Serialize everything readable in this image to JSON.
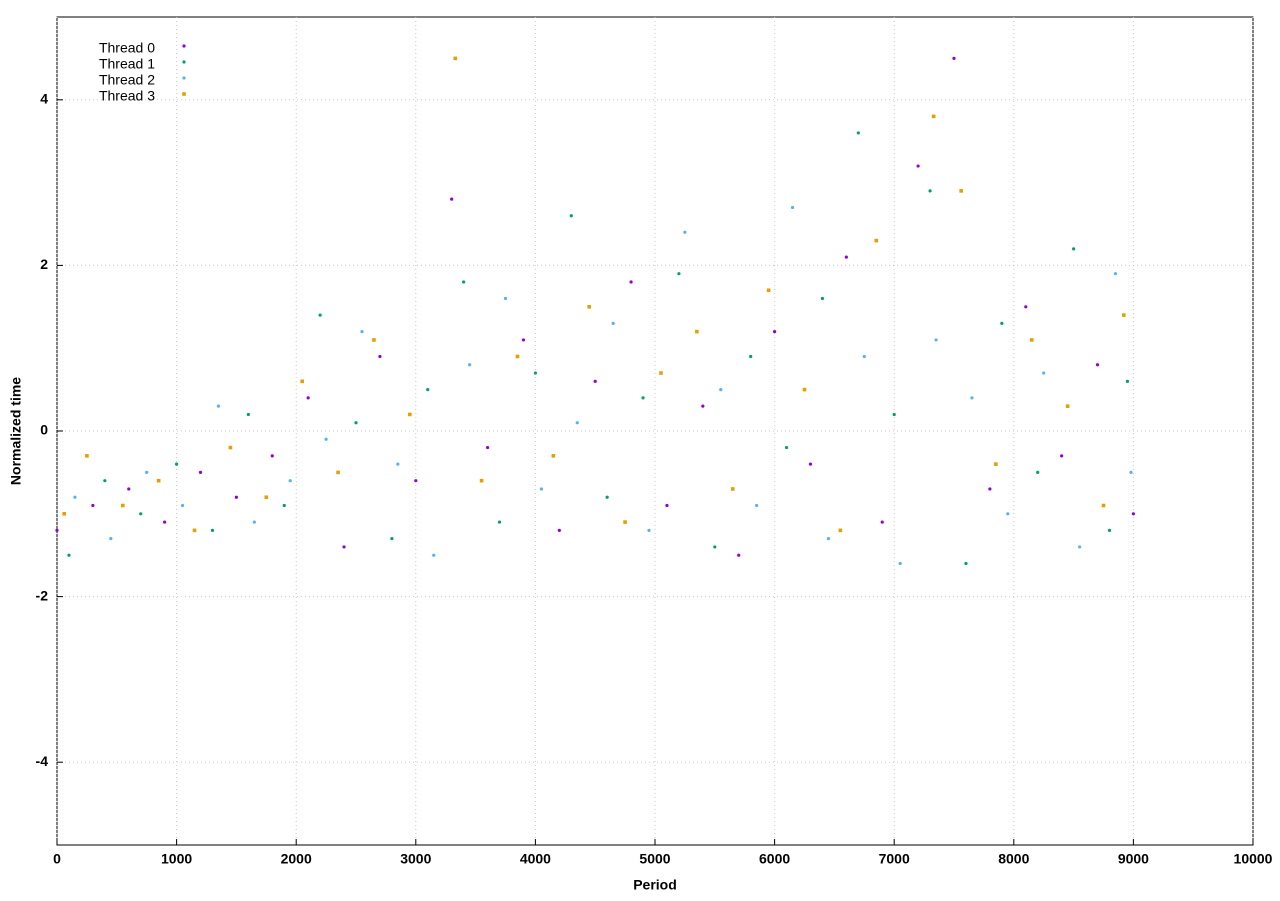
{
  "chart_data": {
    "type": "scatter",
    "xlabel": "Period",
    "ylabel": "Normalized time",
    "xlim": [
      0,
      10000
    ],
    "ylim": [
      -5,
      5
    ],
    "xticks": [
      0,
      1000,
      2000,
      3000,
      4000,
      5000,
      6000,
      7000,
      8000,
      9000,
      10000
    ],
    "yticks": [
      -4,
      -2,
      0,
      2,
      4
    ],
    "grid": true,
    "legend": "upper left",
    "series": [
      {
        "name": "Thread 0",
        "color": "#9400d3",
        "marker": "circle",
        "x": [
          0,
          300,
          600,
          900,
          1200,
          1500,
          1800,
          2100,
          2400,
          2700,
          3000,
          3300,
          3600,
          3900,
          4200,
          4500,
          4800,
          5100,
          5400,
          5700,
          6000,
          6300,
          6600,
          6900,
          7200,
          7500,
          7800,
          8100,
          8400,
          8700,
          9000
        ],
        "y": [
          -1.2,
          -0.9,
          -0.7,
          -1.1,
          -0.5,
          -0.8,
          -0.3,
          0.4,
          -1.4,
          0.9,
          -0.6,
          2.8,
          -0.2,
          1.1,
          -1.2,
          0.6,
          1.8,
          -0.9,
          0.3,
          -1.5,
          1.2,
          -0.4,
          2.1,
          -1.1,
          3.2,
          4.5,
          -0.7,
          1.5,
          -0.3,
          0.8,
          -1.0
        ]
      },
      {
        "name": "Thread 1",
        "color": "#009e73",
        "marker": "circle",
        "x": [
          100,
          400,
          700,
          1000,
          1300,
          1600,
          1900,
          2200,
          2500,
          2800,
          3100,
          3400,
          3700,
          4000,
          4300,
          4600,
          4900,
          5200,
          5500,
          5800,
          6100,
          6400,
          6700,
          7000,
          7300,
          7600,
          7900,
          8200,
          8500,
          8800,
          8950
        ],
        "y": [
          -1.5,
          -0.6,
          -1.0,
          -0.4,
          -1.2,
          0.2,
          -0.9,
          1.4,
          0.1,
          -1.3,
          0.5,
          1.8,
          -1.1,
          0.7,
          2.6,
          -0.8,
          0.4,
          1.9,
          -1.4,
          0.9,
          -0.2,
          1.6,
          3.6,
          0.2,
          2.9,
          -1.6,
          1.3,
          -0.5,
          2.2,
          -1.2,
          0.6
        ]
      },
      {
        "name": "Thread 2",
        "color": "#56b4e9",
        "marker": "circle",
        "x": [
          150,
          450,
          750,
          1050,
          1350,
          1650,
          1950,
          2250,
          2550,
          2850,
          3150,
          3450,
          3750,
          4050,
          4350,
          4650,
          4950,
          5250,
          5550,
          5850,
          6150,
          6450,
          6750,
          7050,
          7350,
          7650,
          7950,
          8250,
          8550,
          8850,
          8980
        ],
        "y": [
          -0.8,
          -1.3,
          -0.5,
          -0.9,
          0.3,
          -1.1,
          -0.6,
          -0.1,
          1.2,
          -0.4,
          -1.5,
          0.8,
          1.6,
          -0.7,
          0.1,
          1.3,
          -1.2,
          2.4,
          0.5,
          -0.9,
          2.7,
          -1.3,
          0.9,
          -1.6,
          1.1,
          0.4,
          -1.0,
          0.7,
          -1.4,
          1.9,
          -0.5
        ]
      },
      {
        "name": "Thread 3",
        "color": "#e69f00",
        "marker": "square",
        "x": [
          60,
          250,
          550,
          850,
          1150,
          1450,
          1750,
          2050,
          2350,
          2650,
          2950,
          3330,
          3550,
          3850,
          4150,
          4450,
          4750,
          5050,
          5350,
          5650,
          5950,
          6250,
          6550,
          6850,
          7330,
          7560,
          7850,
          8150,
          8450,
          8750,
          8920
        ],
        "y": [
          -1.0,
          -0.3,
          -0.9,
          -0.6,
          -1.2,
          -0.2,
          -0.8,
          0.6,
          -0.5,
          1.1,
          0.2,
          4.5,
          -0.6,
          0.9,
          -0.3,
          1.5,
          -1.1,
          0.7,
          1.2,
          -0.7,
          1.7,
          0.5,
          -1.2,
          2.3,
          3.8,
          2.9,
          -0.4,
          1.1,
          0.3,
          -0.9,
          1.4
        ]
      }
    ]
  }
}
